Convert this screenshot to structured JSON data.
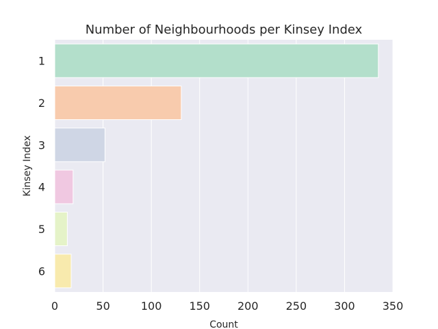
{
  "chart_data": {
    "type": "bar",
    "orientation": "horizontal",
    "title": "Number of Neighbourhoods per Kinsey Index",
    "xlabel": "Count",
    "ylabel": "Kinsey Index",
    "categories": [
      "1",
      "2",
      "3",
      "4",
      "5",
      "6"
    ],
    "values": [
      335,
      131,
      52,
      19,
      13,
      17
    ],
    "xlim": [
      0,
      350
    ],
    "xticks": [
      "0",
      "50",
      "100",
      "150",
      "200",
      "250",
      "300",
      "350"
    ],
    "grid": true,
    "colors": [
      "#b3dfcb",
      "#f8cbad",
      "#cfd6e5",
      "#f0c8e1",
      "#e5f3c8",
      "#f8eaad"
    ],
    "background": "#eaeaf2"
  }
}
